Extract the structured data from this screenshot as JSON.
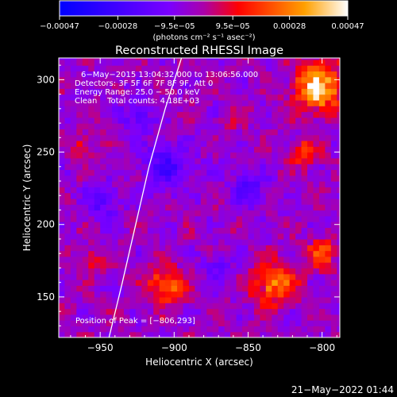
{
  "chart_data": {
    "type": "heatmap",
    "title": "Reconstructed RHESSI Image",
    "xlabel": "Heliocentric X (arcsec)",
    "ylabel": "Heliocentric Y (arcsec)",
    "xlim": [
      -978,
      -788
    ],
    "ylim": [
      122,
      315
    ],
    "xticks": [
      -950,
      -900,
      -850,
      -800
    ],
    "yticks": [
      150,
      200,
      250,
      300
    ],
    "xtick_labels": [
      "−950",
      "−900",
      "−850",
      "−800"
    ],
    "ytick_labels": [
      "150",
      "200",
      "250",
      "300"
    ],
    "colorbar": {
      "range": [
        -0.00047,
        0.00047
      ],
      "ticks": [
        -0.00047,
        -0.00028,
        -9.5e-05,
        9.5e-05,
        0.00028,
        0.00047
      ],
      "tick_labels": [
        "−0.00047",
        "−0.00028",
        "−9.5e−05",
        "9.5e−05",
        "0.00028",
        "0.00047"
      ],
      "unit_label": "(photons cm⁻² s⁻¹ asec⁻²)",
      "colors": [
        "#0000ff",
        "#7a00ff",
        "#ff0000",
        "#ffa000",
        "#ffffff"
      ]
    },
    "annotations": [
      "6−May−2015 13:04:32.000 to 13:06:56.000",
      "Detectors: 3F 5F 6F 7F 8F 9F, Att 0",
      "Energy Range: 25.0 − 50.0 keV",
      "Clean    Total counts: 4.18E+03"
    ],
    "peak_label": "Position of Peak = [−806,293]",
    "peak": [
      -806,
      293
    ],
    "limb_curve": [
      [
        -944,
        122
      ],
      [
        -935,
        160
      ],
      [
        -926,
        200
      ],
      [
        -917,
        240
      ],
      [
        -906,
        280
      ],
      [
        -895,
        315
      ]
    ],
    "bright_regions": [
      {
        "x": -802,
        "y": 295,
        "r": 16,
        "level": 0.00047
      },
      {
        "x": -812,
        "y": 250,
        "r": 10,
        "level": 0.00022
      },
      {
        "x": -832,
        "y": 160,
        "r": 14,
        "level": 0.00035
      },
      {
        "x": -800,
        "y": 180,
        "r": 10,
        "level": 0.00024
      },
      {
        "x": -905,
        "y": 158,
        "r": 12,
        "level": 0.00032
      },
      {
        "x": -955,
        "y": 175,
        "r": 8,
        "level": 0.00015
      },
      {
        "x": -962,
        "y": 255,
        "r": 8,
        "level": 0.00014
      },
      {
        "x": -860,
        "y": 270,
        "r": 7,
        "level": 0.00012
      }
    ],
    "dark_regions": [
      {
        "x": -905,
        "y": 240,
        "r": 16,
        "level": -0.0002
      },
      {
        "x": -925,
        "y": 275,
        "r": 10,
        "level": -0.00016
      },
      {
        "x": -850,
        "y": 225,
        "r": 12,
        "level": -0.00018
      },
      {
        "x": -948,
        "y": 215,
        "r": 12,
        "level": -0.00015
      },
      {
        "x": -870,
        "y": 170,
        "r": 10,
        "level": -0.00012
      }
    ]
  },
  "footer": {
    "timestamp": "21−May−2022 01:44"
  }
}
